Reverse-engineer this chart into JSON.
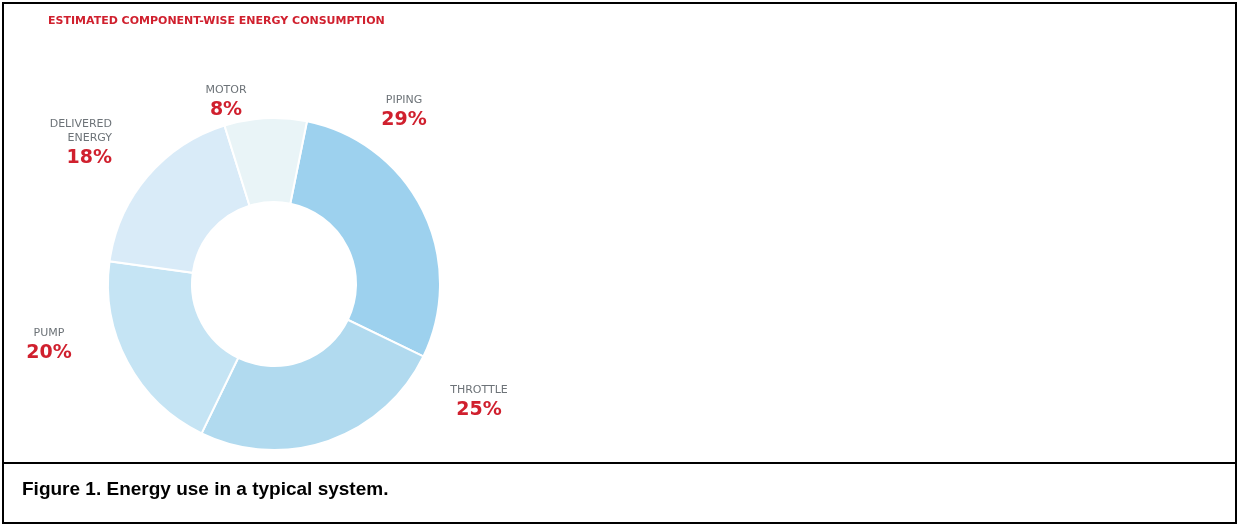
{
  "chart_data": {
    "type": "donut",
    "title": "ESTIMATED COMPONENT-WISE ENERGY CONSUMPTION",
    "categories": [
      "PIPING",
      "THROTTLE",
      "PUMP",
      "DELIVERED ENERGY",
      "MOTOR"
    ],
    "values": [
      29,
      25,
      20,
      18,
      8
    ],
    "colors": [
      "#9dd1ee",
      "#b1daef",
      "#c5e4f4",
      "#d9ebf8",
      "#e9f4f7"
    ],
    "value_labels": [
      "29%",
      "25%",
      "20%",
      "18%",
      "8%"
    ],
    "legend": false,
    "annotations": [
      "Figure 1.  Energy use in a typical system."
    ]
  }
}
